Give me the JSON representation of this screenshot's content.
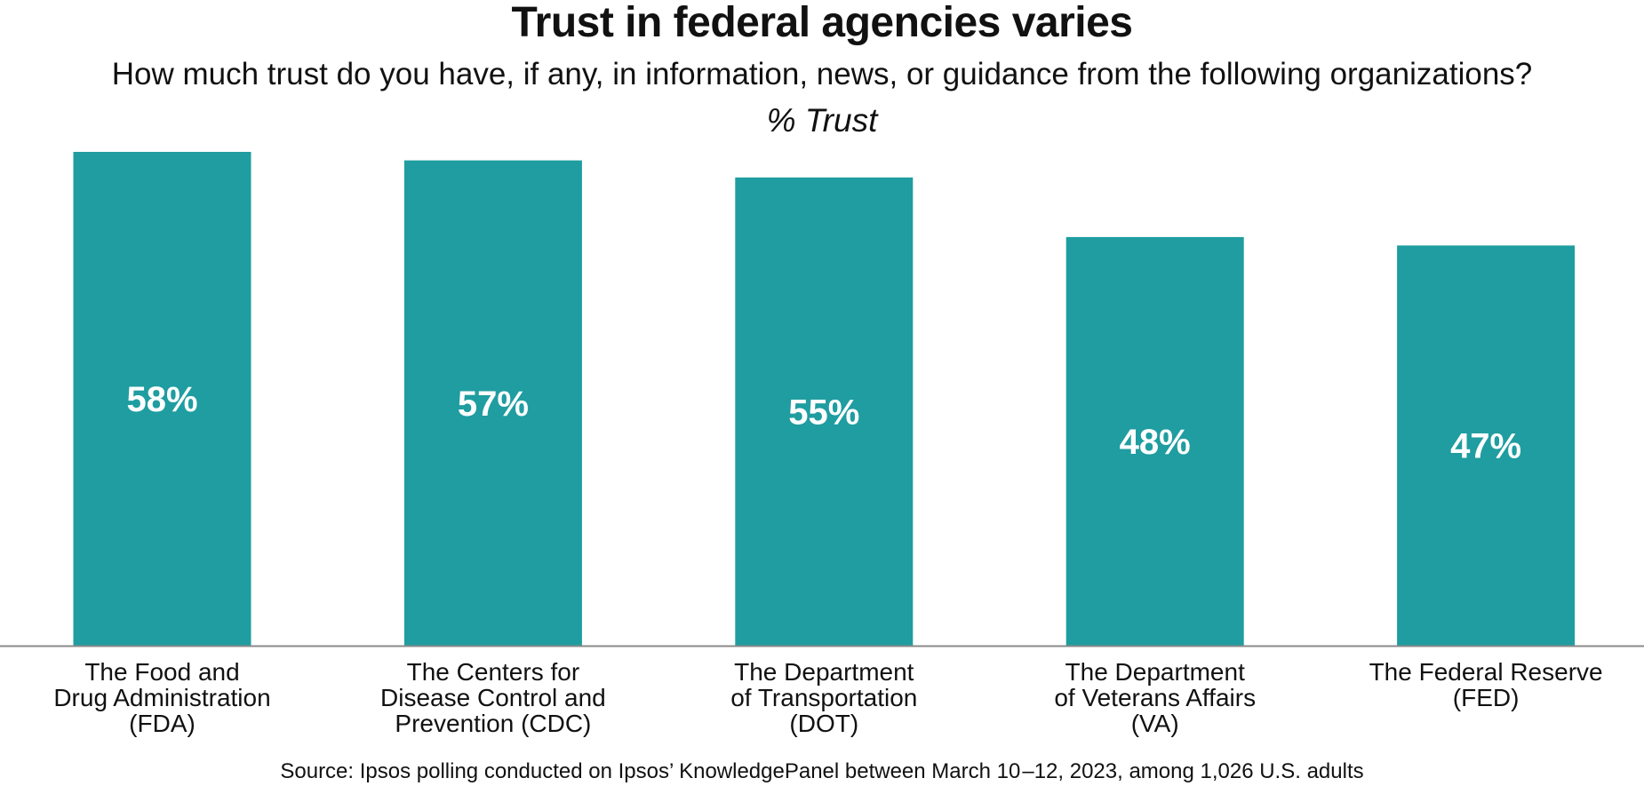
{
  "chart_data": {
    "type": "bar",
    "title": "Trust in federal agencies varies",
    "subtitle": "How much trust do you have, if any, in information, news, or guidance from the following organizations?",
    "measure_label": "% Trust",
    "categories": [
      [
        "The Food and",
        "Drug Administration",
        "(FDA)"
      ],
      [
        "The Centers for",
        "Disease Control and",
        "Prevention (CDC)"
      ],
      [
        "The Department",
        "of Transportation",
        "(DOT)"
      ],
      [
        "The Department",
        "of Veterans Affairs",
        "(VA)"
      ],
      [
        "The Federal Reserve",
        "(FED)"
      ]
    ],
    "values": [
      58,
      57,
      55,
      48,
      47
    ],
    "value_labels": [
      "58%",
      "57%",
      "55%",
      "48%",
      "47%"
    ],
    "bar_color": "#1f9da0",
    "baseline_color": "#8a8a8a",
    "ylim": [
      0,
      58
    ],
    "grid": false,
    "source": "Source: Ipsos polling conducted on Ipsos’ KnowledgePanel between March 10 –12, 2023, among 1,026 U.S. adults"
  }
}
